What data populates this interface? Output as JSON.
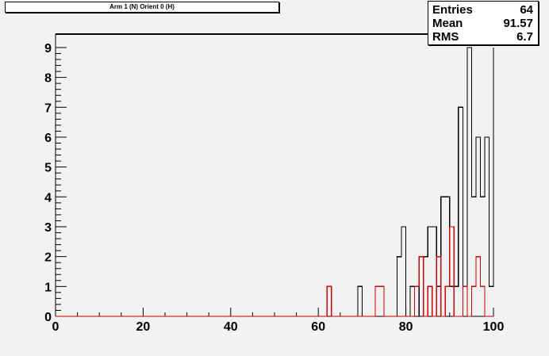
{
  "title": "Arm 1 (N) Orient 0 (H)",
  "stats": [
    {
      "label": "Entries",
      "value": "64"
    },
    {
      "label": "Mean",
      "value": "91.57"
    },
    {
      "label": "RMS",
      "value": "6.7"
    }
  ],
  "chart_data": {
    "type": "histogram",
    "title": "Arm 1 (N) Orient 0 (H)",
    "xlabel": "",
    "ylabel": "",
    "xlim": [
      0,
      100
    ],
    "ylim": [
      0,
      9.45
    ],
    "bin_width": 1,
    "x_ticks": [
      0,
      20,
      40,
      60,
      80,
      100
    ],
    "y_ticks": [
      0,
      1,
      2,
      3,
      4,
      5,
      6,
      7,
      8,
      9
    ],
    "grid": false,
    "series": [
      {
        "color": "#000000",
        "bins": [
          {
            "x": 69,
            "y": 1
          },
          {
            "x": 73,
            "y": 1
          },
          {
            "x": 74,
            "y": 1
          },
          {
            "x": 78,
            "y": 2
          },
          {
            "x": 79,
            "y": 3
          },
          {
            "x": 81,
            "y": 1
          },
          {
            "x": 83,
            "y": 2
          },
          {
            "x": 84,
            "y": 2
          },
          {
            "x": 85,
            "y": 3
          },
          {
            "x": 86,
            "y": 3
          },
          {
            "x": 87,
            "y": 1
          },
          {
            "x": 88,
            "y": 4
          },
          {
            "x": 89,
            "y": 4
          },
          {
            "x": 90,
            "y": 1
          },
          {
            "x": 91,
            "y": 1
          },
          {
            "x": 92,
            "y": 7
          },
          {
            "x": 93,
            "y": 1
          },
          {
            "x": 94,
            "y": 9
          },
          {
            "x": 95,
            "y": 4
          },
          {
            "x": 96,
            "y": 6
          },
          {
            "x": 97,
            "y": 4
          },
          {
            "x": 98,
            "y": 6
          },
          {
            "x": 99,
            "y": 1
          }
        ],
        "overflow_edge_value": 9
      },
      {
        "color": "#cc0000",
        "bins": [
          {
            "x": 62,
            "y": 1
          },
          {
            "x": 73,
            "y": 1
          },
          {
            "x": 74,
            "y": 1
          },
          {
            "x": 82,
            "y": 1
          },
          {
            "x": 83,
            "y": 2
          },
          {
            "x": 85,
            "y": 1
          },
          {
            "x": 87,
            "y": 2
          },
          {
            "x": 89,
            "y": 1
          },
          {
            "x": 90,
            "y": 3
          },
          {
            "x": 93,
            "y": 1
          },
          {
            "x": 95,
            "y": 1
          },
          {
            "x": 96,
            "y": 2
          },
          {
            "x": 97,
            "y": 1
          }
        ]
      }
    ]
  },
  "colors": {
    "background": "#f2f2f2",
    "frame": "#000000",
    "series_primary": "#000000",
    "series_secondary": "#cc0000"
  }
}
